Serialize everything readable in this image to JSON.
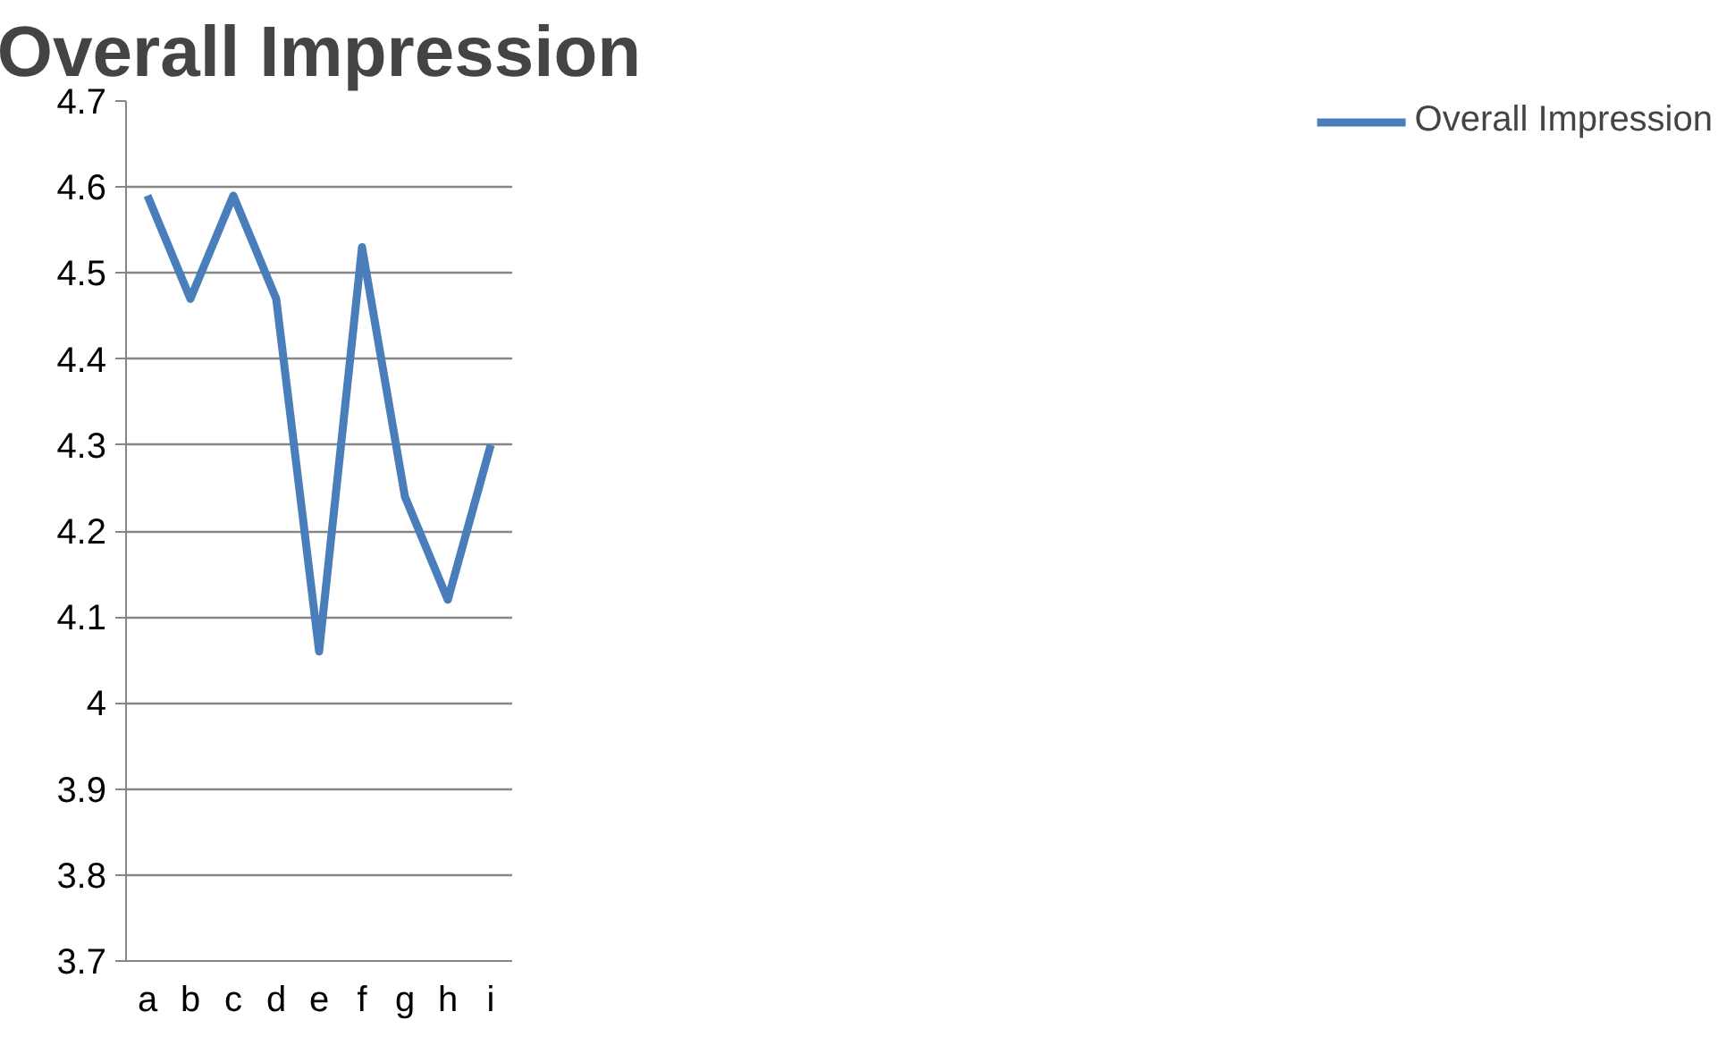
{
  "chart_data": {
    "type": "line",
    "title": "Overall Impression",
    "categories": [
      "a",
      "b",
      "c",
      "d",
      "e",
      "f",
      "g",
      "h",
      "i"
    ],
    "series": [
      {
        "name": "Overall Impression",
        "color": "#4a7ebb",
        "values": [
          4.59,
          4.47,
          4.59,
          4.47,
          4.06,
          4.53,
          4.24,
          4.12,
          4.3
        ]
      }
    ],
    "ylim": [
      3.7,
      4.7
    ],
    "yticks": [
      3.7,
      3.8,
      3.9,
      {
        "value": 4,
        "label": "4"
      },
      4.1,
      4.2,
      4.3,
      4.4,
      4.5,
      4.6,
      4.7
    ],
    "grid": "y",
    "legend": "right",
    "marker": "none",
    "line_style": "solid"
  }
}
